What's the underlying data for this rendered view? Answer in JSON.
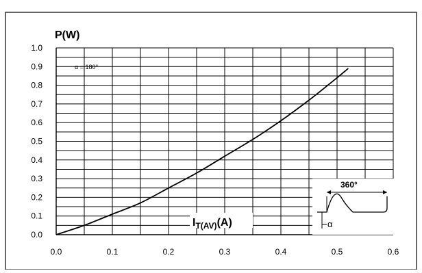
{
  "chart_data": {
    "type": "line",
    "ylabel": "P(W)",
    "xlabel_main": "I",
    "xlabel_sub": "T(AV)",
    "xlabel_suffix": "(A)",
    "annotation": "α = 180°",
    "inset": {
      "period_label": "360°",
      "angle_label": "α"
    },
    "xlim": [
      0.0,
      0.6
    ],
    "ylim": [
      0.0,
      1.0
    ],
    "x_ticks": [
      "0.0",
      "0.1",
      "0.2",
      "0.3",
      "0.4",
      "0.5",
      "0.6"
    ],
    "y_ticks": [
      "0.0",
      "0.1",
      "0.2",
      "0.3",
      "0.4",
      "0.5",
      "0.6",
      "0.7",
      "0.8",
      "0.9",
      "1.0"
    ],
    "grid": true,
    "series": [
      {
        "x": [
          0.0,
          0.05,
          0.1,
          0.15,
          0.2,
          0.25,
          0.3,
          0.35,
          0.4,
          0.45,
          0.5,
          0.52
        ],
        "y": [
          0.0,
          0.05,
          0.11,
          0.17,
          0.25,
          0.33,
          0.42,
          0.51,
          0.61,
          0.72,
          0.84,
          0.89
        ],
        "color": "#000000"
      }
    ]
  }
}
